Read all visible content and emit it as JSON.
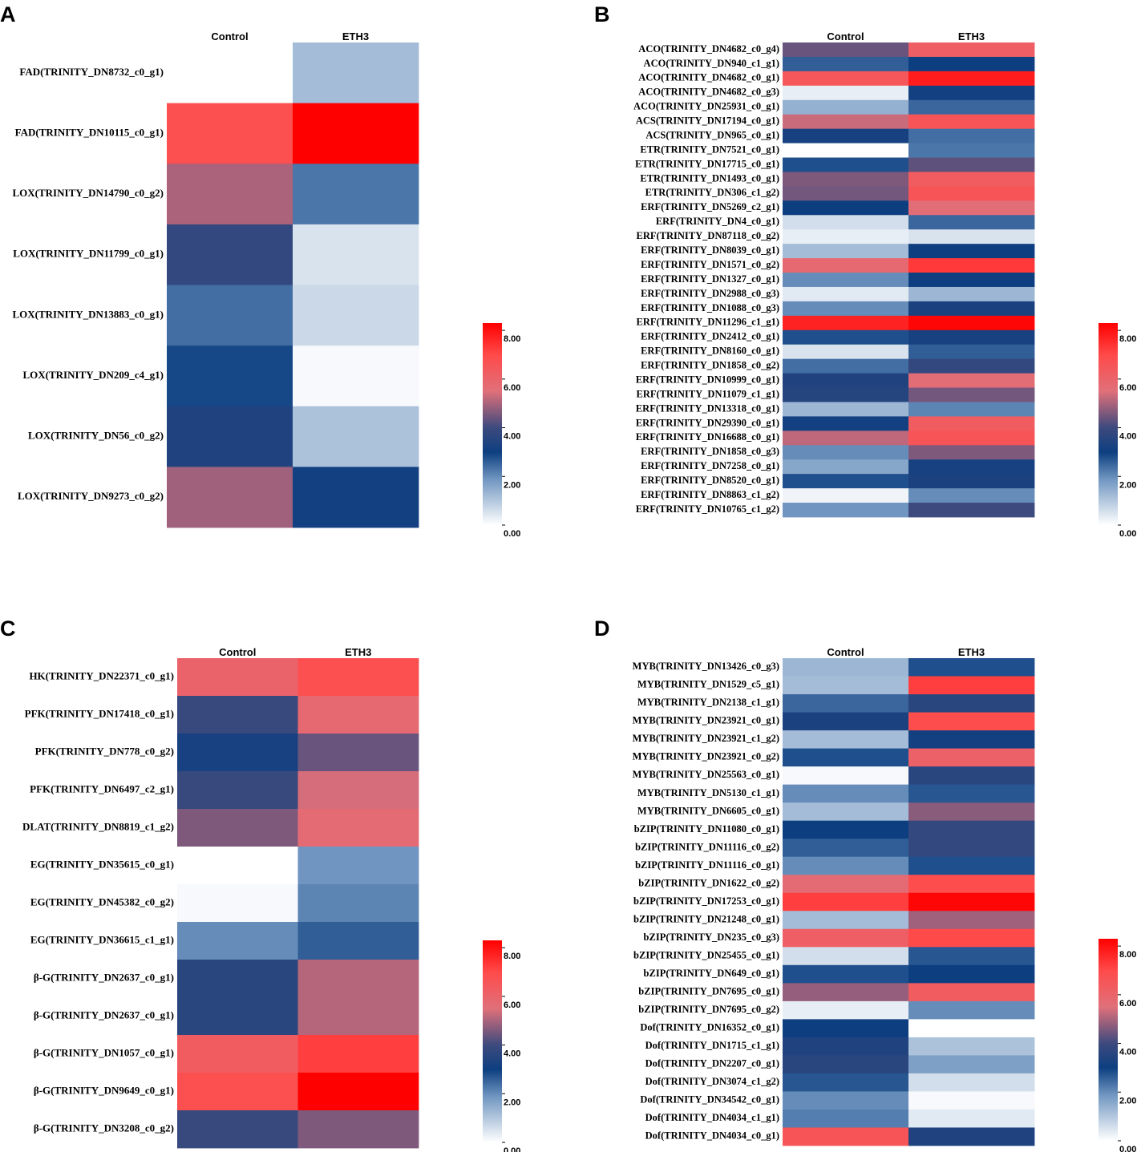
{
  "colorscale": {
    "ticks": [
      "8.00",
      "6.00",
      "4.00",
      "2.00",
      "0.00"
    ],
    "tick_values": [
      8,
      6,
      4,
      2,
      0
    ],
    "range": [
      0,
      8.3
    ],
    "stops": [
      {
        "value": 0,
        "color": "#ffffff"
      },
      {
        "value": 1.9,
        "color": "#6f95c0"
      },
      {
        "value": 3.0,
        "color": "#0d3f80"
      },
      {
        "value": 4.0,
        "color": "#3d4a7e"
      },
      {
        "value": 5.5,
        "color": "#e0707a"
      },
      {
        "value": 7.0,
        "color": "#ff4a4a"
      },
      {
        "value": 8.3,
        "color": "#ff0000"
      }
    ]
  },
  "chart_data": [
    {
      "type": "heatmap",
      "panel": "A",
      "columns": [
        "Control",
        "ETH3"
      ],
      "rows": [
        {
          "label": "FAD(TRINITY_DN8732_c0_g1)",
          "values": [
            null,
            1.2
          ]
        },
        {
          "label": "FAD(TRINITY_DN10115_c0_g1)",
          "values": [
            6.8,
            8.3
          ]
        },
        {
          "label": "LOX(TRINITY_DN14790_c0_g2)",
          "values": [
            5.0,
            2.3
          ]
        },
        {
          "label": "LOX(TRINITY_DN11799_c0_g1)",
          "values": [
            3.8,
            0.5
          ]
        },
        {
          "label": "LOX(TRINITY_DN13883_c0_g1)",
          "values": [
            2.4,
            0.7
          ]
        },
        {
          "label": "LOX(TRINITY_DN209_c4_g1)",
          "values": [
            2.9,
            0.1
          ]
        },
        {
          "label": "LOX(TRINITY_DN56_c0_g2)",
          "values": [
            3.4,
            1.1
          ]
        },
        {
          "label": "LOX(TRINITY_DN9273_c0_g2)",
          "values": [
            4.9,
            3.1
          ]
        }
      ]
    },
    {
      "type": "heatmap",
      "panel": "B",
      "columns": [
        "Control",
        "ETH3"
      ],
      "rows": [
        {
          "label": "ACO(TRINITY_DN4682_c0_g4)",
          "values": [
            4.4,
            6.2
          ]
        },
        {
          "label": "ACO(TRINITY_DN940_c1_g1)",
          "values": [
            2.6,
            3.0
          ]
        },
        {
          "label": "ACO(TRINITY_DN4682_c0_g1)",
          "values": [
            6.5,
            7.8
          ]
        },
        {
          "label": "ACO(TRINITY_DN4682_c0_g3)",
          "values": [
            0.3,
            3.1
          ]
        },
        {
          "label": "ACO(TRINITY_DN25931_c0_g1)",
          "values": [
            1.4,
            2.5
          ]
        },
        {
          "label": "ACS(TRINITY_DN17194_c0_g1)",
          "values": [
            5.3,
            6.6
          ]
        },
        {
          "label": "ACS(TRINITY_DN965_c0_g1)",
          "values": [
            3.2,
            2.4
          ]
        },
        {
          "label": "ETR(TRINITY_DN7521_c0_g1)",
          "values": [
            0.0,
            2.3
          ]
        },
        {
          "label": "ETR(TRINITY_DN17715_c0_g1)",
          "values": [
            2.8,
            4.3
          ]
        },
        {
          "label": "ETR(TRINITY_DN1493_c0_g1)",
          "values": [
            4.6,
            6.3
          ]
        },
        {
          "label": "ETR(TRINITY_DN306_c1_g2)",
          "values": [
            4.5,
            6.6
          ]
        },
        {
          "label": "ERF(TRINITY_DN5269_c2_g1)",
          "values": [
            3.0,
            5.6
          ]
        },
        {
          "label": "ERF(TRINITY_DN4_c0_g1)",
          "values": [
            0.6,
            2.5
          ]
        },
        {
          "label": "ERF(TRINITY_DN87118_c0_g2)",
          "values": [
            0.3,
            0.5
          ]
        },
        {
          "label": "ERF(TRINITY_DN8039_c0_g1)",
          "values": [
            1.2,
            3.0
          ]
        },
        {
          "label": "ERF(TRINITY_DN1571_c0_g2)",
          "values": [
            5.8,
            7.3
          ]
        },
        {
          "label": "ERF(TRINITY_DN1327_c0_g1)",
          "values": [
            2.0,
            3.0
          ]
        },
        {
          "label": "ERF(TRINITY_DN2988_c0_g3)",
          "values": [
            0.4,
            1.3
          ]
        },
        {
          "label": "ERF(TRINITY_DN1088_c0_g3)",
          "values": [
            2.0,
            3.3
          ]
        },
        {
          "label": "ERF(TRINITY_DN11296_c1_g1)",
          "values": [
            7.7,
            8.2
          ]
        },
        {
          "label": "ERF(TRINITY_DN2412_c0_g1)",
          "values": [
            2.8,
            3.2
          ]
        },
        {
          "label": "ERF(TRINITY_DN8160_c0_g1)",
          "values": [
            0.5,
            2.6
          ]
        },
        {
          "label": "ERF(TRINITY_DN1858_c0_g2)",
          "values": [
            2.4,
            3.8
          ]
        },
        {
          "label": "ERF(TRINITY_DN10999_c0_g1)",
          "values": [
            3.4,
            5.6
          ]
        },
        {
          "label": "ERF(TRINITY_DN11079_c1_g1)",
          "values": [
            3.5,
            4.5
          ]
        },
        {
          "label": "ERF(TRINITY_DN13318_c0_g1)",
          "values": [
            1.3,
            2.1
          ]
        },
        {
          "label": "ERF(TRINITY_DN29390_c0_g1)",
          "values": [
            3.1,
            6.3
          ]
        },
        {
          "label": "ERF(TRINITY_DN16688_c0_g1)",
          "values": [
            5.2,
            6.6
          ]
        },
        {
          "label": "ERF(TRINITY_DN1858_c0_g3)",
          "values": [
            2.0,
            4.6
          ]
        },
        {
          "label": "ERF(TRINITY_DN7258_c0_g1)",
          "values": [
            1.6,
            3.2
          ]
        },
        {
          "label": "ERF(TRINITY_DN8520_c0_g1)",
          "values": [
            2.8,
            3.3
          ]
        },
        {
          "label": "ERF(TRINITY_DN8863_c1_g2)",
          "values": [
            0.2,
            2.0
          ]
        },
        {
          "label": "ERF(TRINITY_DN10765_c1_g2)",
          "values": [
            1.9,
            4.0
          ]
        }
      ]
    },
    {
      "type": "heatmap",
      "panel": "C",
      "columns": [
        "Control",
        "ETH3"
      ],
      "rows": [
        {
          "label": "HK(TRINITY_DN22371_c0_g1)",
          "values": [
            6.0,
            6.8
          ]
        },
        {
          "label": "PFK(TRINITY_DN17418_c0_g1)",
          "values": [
            3.9,
            5.8
          ]
        },
        {
          "label": "PFK(TRINITY_DN778_c0_g2)",
          "values": [
            3.2,
            4.4
          ]
        },
        {
          "label": "PFK(TRINITY_DN6497_c2_g1)",
          "values": [
            3.9,
            5.4
          ]
        },
        {
          "label": "DLAT(TRINITY_DN8819_c1_g2)",
          "values": [
            4.6,
            5.7
          ]
        },
        {
          "label": "EG(TRINITY_DN35615_c0_g1)",
          "values": [
            0.0,
            1.9
          ]
        },
        {
          "label": "EG(TRINITY_DN45382_c0_g2)",
          "values": [
            0.1,
            2.1
          ]
        },
        {
          "label": "EG(TRINITY_DN36615_c1_g1)",
          "values": [
            2.0,
            2.6
          ]
        },
        {
          "label": "β-G(TRINITY_DN2637_c0_g1)",
          "values": [
            3.6,
            5.1
          ]
        },
        {
          "label": "β-G(TRINITY_DN2637_c0_g1)",
          "values": [
            3.6,
            5.1
          ]
        },
        {
          "label": "β-G(TRINITY_DN1057_c0_g1)",
          "values": [
            6.3,
            7.2
          ]
        },
        {
          "label": "β-G(TRINITY_DN9649_c0_g1)",
          "values": [
            6.8,
            8.3
          ]
        },
        {
          "label": "β-G(TRINITY_DN3208_c0_g2)",
          "values": [
            3.9,
            4.6
          ]
        }
      ]
    },
    {
      "type": "heatmap",
      "panel": "D",
      "columns": [
        "Control",
        "ETH3"
      ],
      "rows": [
        {
          "label": "MYB(TRINITY_DN13426_c0_g3)",
          "values": [
            1.3,
            2.8
          ]
        },
        {
          "label": "MYB(TRINITY_DN1529_c5_g1)",
          "values": [
            1.2,
            7.2
          ]
        },
        {
          "label": "MYB(TRINITY_DN2138_c1_g1)",
          "values": [
            2.5,
            3.6
          ]
        },
        {
          "label": "MYB(TRINITY_DN23921_c0_g1)",
          "values": [
            3.3,
            6.9
          ]
        },
        {
          "label": "MYB(TRINITY_DN23921_c1_g2)",
          "values": [
            1.2,
            3.1
          ]
        },
        {
          "label": "MYB(TRINITY_DN23921_c0_g2)",
          "values": [
            2.8,
            6.1
          ]
        },
        {
          "label": "MYB(TRINITY_DN25563_c0_g1)",
          "values": [
            0.1,
            3.6
          ]
        },
        {
          "label": "MYB(TRINITY_DN5130_c1_g1)",
          "values": [
            2.0,
            2.7
          ]
        },
        {
          "label": "MYB(TRINITY_DN6605_c0_g1)",
          "values": [
            1.2,
            4.7
          ]
        },
        {
          "label": "bZIP(TRINITY_DN11080_c0_g1)",
          "values": [
            3.0,
            3.8
          ]
        },
        {
          "label": "bZIP(TRINITY_DN11116_c0_g2)",
          "values": [
            2.6,
            3.8
          ]
        },
        {
          "label": "bZIP(TRINITY_DN11116_c0_g1)",
          "values": [
            2.0,
            2.8
          ]
        },
        {
          "label": "bZIP(TRINITY_DN1622_c0_g2)",
          "values": [
            5.7,
            6.9
          ]
        },
        {
          "label": "bZIP(TRINITY_DN17253_c0_g1)",
          "values": [
            7.2,
            8.2
          ]
        },
        {
          "label": "bZIP(TRINITY_DN21248_c0_g1)",
          "values": [
            1.2,
            4.9
          ]
        },
        {
          "label": "bZIP(TRINITY_DN235_c0_g3)",
          "values": [
            6.2,
            7.0
          ]
        },
        {
          "label": "bZIP(TRINITY_DN25455_c0_g1)",
          "values": [
            0.6,
            2.7
          ]
        },
        {
          "label": "bZIP(TRINITY_DN649_c0_g1)",
          "values": [
            2.8,
            3.0
          ]
        },
        {
          "label": "bZIP(TRINITY_DN7695_c0_g1)",
          "values": [
            4.8,
            6.3
          ]
        },
        {
          "label": "bZIP(TRINITY_DN7695_c0_g2)",
          "values": [
            0.3,
            2.0
          ]
        },
        {
          "label": "Dof(TRINITY_DN16352_c0_g1)",
          "values": [
            3.0,
            0.0
          ]
        },
        {
          "label": "Dof(TRINITY_DN1715_c1_g1)",
          "values": [
            3.4,
            1.1
          ]
        },
        {
          "label": "Dof(TRINITY_DN2207_c0_g1)",
          "values": [
            3.6,
            1.7
          ]
        },
        {
          "label": "Dof(TRINITY_DN3074_c1_g2)",
          "values": [
            2.7,
            0.6
          ]
        },
        {
          "label": "Dof(TRINITY_DN34542_c0_g1)",
          "values": [
            2.0,
            0.1
          ]
        },
        {
          "label": "Dof(TRINITY_DN4034_c1_g1)",
          "values": [
            2.2,
            0.4
          ]
        },
        {
          "label": "Dof(TRINITY_DN4034_c0_g1)",
          "values": [
            6.6,
            3.4
          ]
        }
      ]
    }
  ]
}
